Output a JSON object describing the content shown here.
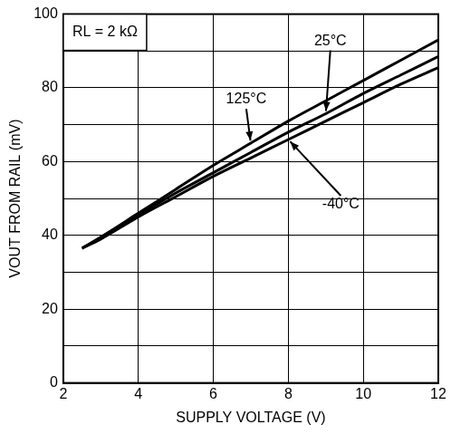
{
  "chart_data": {
    "type": "line",
    "x_label": "SUPPLY VOLTAGE (V)",
    "y_label": "VOUT FROM RAIL (mV)",
    "annotations": [
      "RL = 2 kΩ"
    ],
    "x": [
      2.5,
      3,
      4,
      5,
      6,
      7,
      8,
      9,
      10,
      11,
      12
    ],
    "series": [
      {
        "name": "25°C",
        "color": "#000000",
        "values": [
          36.5,
          39.5,
          45.5,
          51.5,
          57,
          62.5,
          68,
          73,
          78.5,
          83.5,
          88.5
        ]
      },
      {
        "name": "125°C",
        "color": "#000000",
        "values": [
          36.5,
          39.5,
          46,
          52.5,
          59,
          65,
          71,
          76.5,
          82,
          87.5,
          93
        ]
      },
      {
        "name": "-40°C",
        "color": "#000000",
        "values": [
          36.5,
          39,
          45,
          50.5,
          56,
          61,
          66,
          71,
          76,
          81,
          85.5
        ]
      }
    ],
    "xlim": [
      2,
      12
    ],
    "xticks": [
      2,
      4,
      6,
      8,
      10,
      12
    ],
    "ylim": [
      0,
      100
    ],
    "yticks": [
      0,
      20,
      40,
      60,
      80,
      100
    ],
    "grid": true
  }
}
